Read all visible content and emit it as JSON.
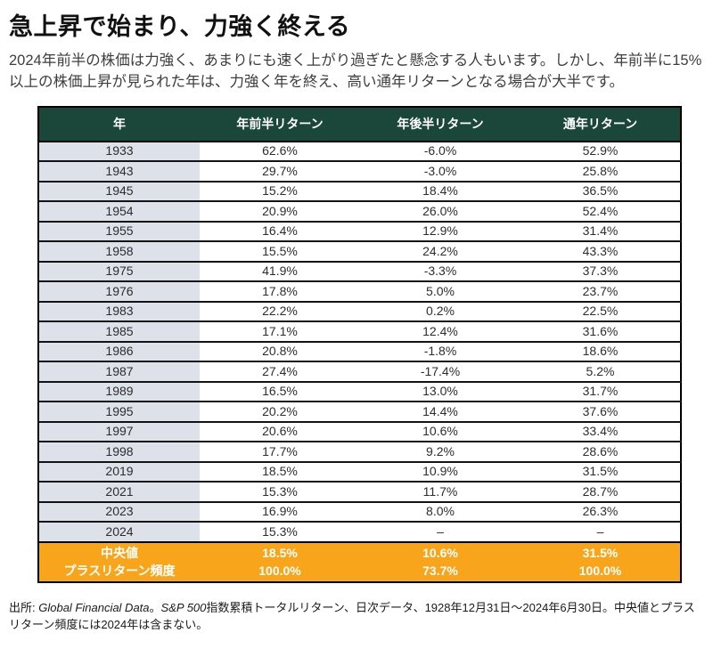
{
  "title": "急上昇で始まり、力強く終える",
  "intro": "2024年前半の株価は力強く、あまりにも速く上がり過ぎたと懸念する人もいます。しかし、年前半に15%以上の株価上昇が見られた年は、力強く年を終え、高い通年リターンとなる場合が大半です。",
  "colors": {
    "header_green": "#1b463a",
    "year_column_gray": "#dce1ea",
    "summary_orange": "#f9a51b",
    "row_border_black": "#000000"
  },
  "table": {
    "headers": [
      "年",
      "年前半リターン",
      "年後半リターン",
      "通年リターン"
    ],
    "rows": [
      {
        "year": "1933",
        "values": [
          "62.6%",
          "-6.0%",
          "52.9%"
        ]
      },
      {
        "year": "1943",
        "values": [
          "29.7%",
          "-3.0%",
          "25.8%"
        ]
      },
      {
        "year": "1945",
        "values": [
          "15.2%",
          "18.4%",
          "36.5%"
        ]
      },
      {
        "year": "1954",
        "values": [
          "20.9%",
          "26.0%",
          "52.4%"
        ]
      },
      {
        "year": "1955",
        "values": [
          "16.4%",
          "12.9%",
          "31.4%"
        ]
      },
      {
        "year": "1958",
        "values": [
          "15.5%",
          "24.2%",
          "43.3%"
        ]
      },
      {
        "year": "1975",
        "values": [
          "41.9%",
          "-3.3%",
          "37.3%"
        ]
      },
      {
        "year": "1976",
        "values": [
          "17.8%",
          "5.0%",
          "23.7%"
        ]
      },
      {
        "year": "1983",
        "values": [
          "22.2%",
          "0.2%",
          "22.5%"
        ]
      },
      {
        "year": "1985",
        "values": [
          "17.1%",
          "12.4%",
          "31.6%"
        ]
      },
      {
        "year": "1986",
        "values": [
          "20.8%",
          "-1.8%",
          "18.6%"
        ]
      },
      {
        "year": "1987",
        "values": [
          "27.4%",
          "-17.4%",
          "5.2%"
        ]
      },
      {
        "year": "1989",
        "values": [
          "16.5%",
          "13.0%",
          "31.7%"
        ]
      },
      {
        "year": "1995",
        "values": [
          "20.2%",
          "14.4%",
          "37.6%"
        ]
      },
      {
        "year": "1997",
        "values": [
          "20.6%",
          "10.6%",
          "33.4%"
        ]
      },
      {
        "year": "1998",
        "values": [
          "17.7%",
          "9.2%",
          "28.6%"
        ]
      },
      {
        "year": "2019",
        "values": [
          "18.5%",
          "10.9%",
          "31.5%"
        ]
      },
      {
        "year": "2021",
        "values": [
          "15.3%",
          "11.7%",
          "28.7%"
        ]
      },
      {
        "year": "2023",
        "values": [
          "16.9%",
          "8.0%",
          "26.3%"
        ]
      },
      {
        "year": "2024",
        "values": [
          "15.3%",
          "–",
          "–"
        ]
      }
    ],
    "summary_rows": [
      {
        "label": "中央値",
        "values": [
          "18.5%",
          "10.6%",
          "31.5%"
        ]
      },
      {
        "label": "プラスリターン頻度",
        "values": [
          "100.0%",
          "73.7%",
          "100.0%"
        ]
      }
    ]
  },
  "footer": {
    "segments": [
      {
        "text": "出所: ",
        "italic": false
      },
      {
        "text": "Global Financial Data",
        "italic": true
      },
      {
        "text": "。",
        "italic": false
      },
      {
        "text": "S&P 500",
        "italic": true
      },
      {
        "text": "指数累積トータルリターン、日次データ、1928年12月31日～2024年6月30日。中央値とプラスリターン頻度には2024年は含まない。",
        "italic": false
      }
    ]
  }
}
